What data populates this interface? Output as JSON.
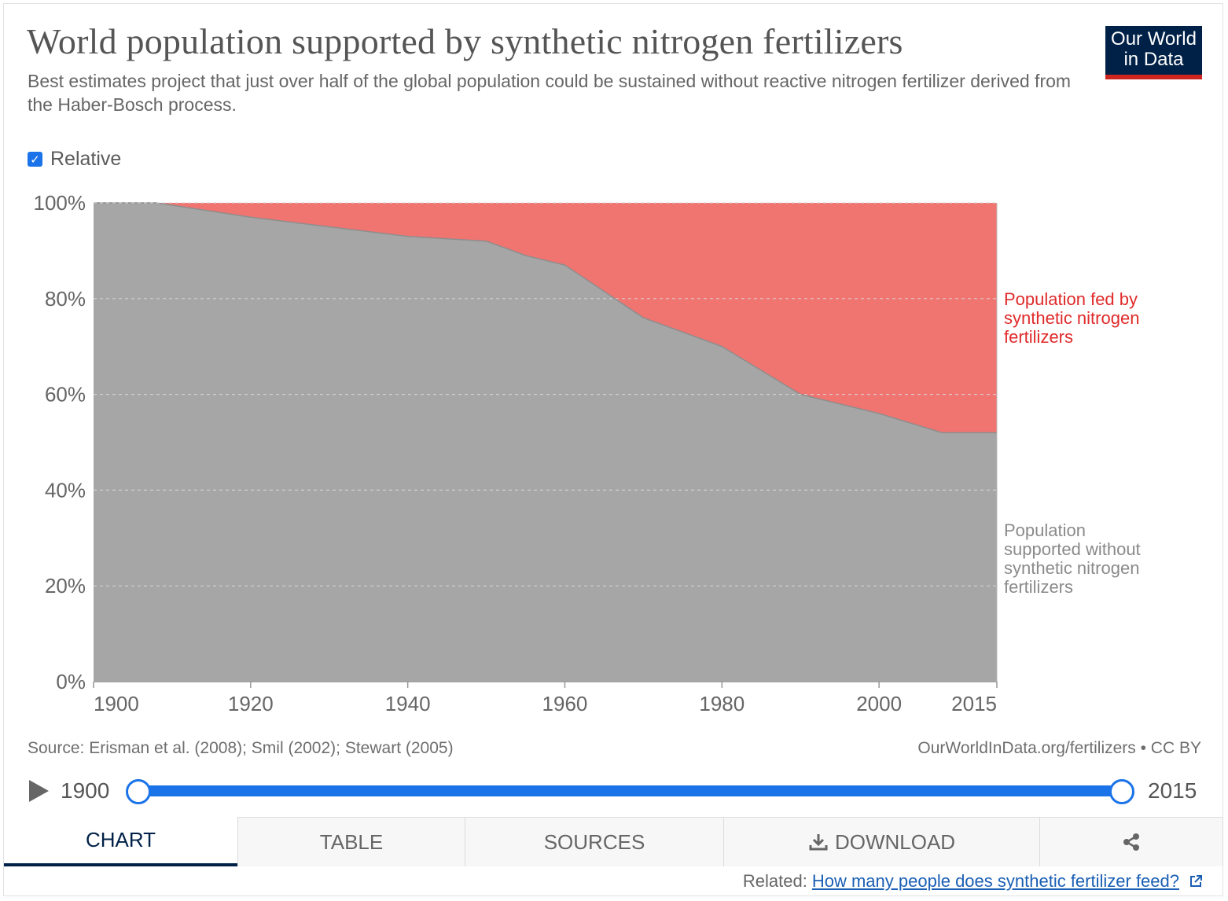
{
  "header": {
    "title": "World population supported by synthetic nitrogen fertilizers",
    "subtitle": "Best estimates project that just over half of the global population could be sustained without reactive nitrogen fertilizer derived from the Haber-Bosch process.",
    "logo_line1": "Our World",
    "logo_line2": "in Data"
  },
  "controls": {
    "relative_label": "Relative",
    "relative_checked": true
  },
  "colors": {
    "fed_by_fertilizer": "#f07470",
    "without_fertilizer": "#a6a6a6",
    "fed_label": "#e02a2a",
    "without_label": "#8a8a8a",
    "accent": "#1a73e8",
    "brand": "#002147"
  },
  "chart_data": {
    "type": "area",
    "stacked": true,
    "relative": true,
    "x": [
      1900,
      1908,
      1920,
      1930,
      1940,
      1950,
      1955,
      1960,
      1970,
      1980,
      1990,
      2000,
      2008,
      2015
    ],
    "series": [
      {
        "name": "Population supported without synthetic nitrogen fertilizers",
        "values": [
          100,
          100,
          97,
          95,
          93,
          92,
          89,
          87,
          76,
          70,
          60,
          56,
          52,
          52
        ]
      },
      {
        "name": "Population fed by synthetic nitrogen fertilizers",
        "values": [
          0,
          0,
          3,
          5,
          7,
          8,
          11,
          13,
          24,
          30,
          40,
          44,
          48,
          48
        ]
      }
    ],
    "xlim": [
      1900,
      2015
    ],
    "ylim": [
      0,
      100
    ],
    "x_ticks": [
      "1900",
      "1920",
      "1940",
      "1960",
      "1980",
      "2000",
      "2015"
    ],
    "y_ticks": [
      "0%",
      "20%",
      "40%",
      "60%",
      "80%",
      "100%"
    ],
    "legend_fed": [
      "Population fed by",
      "synthetic nitrogen",
      "fertilizers"
    ],
    "legend_without": [
      "Population",
      "supported without",
      "synthetic nitrogen",
      "fertilizers"
    ],
    "grid": true
  },
  "footer": {
    "source": "Source: Erisman et al. (2008); Smil (2002); Stewart (2005)",
    "license": "OurWorldInData.org/fertilizers • CC BY"
  },
  "timeline": {
    "start_year": "1900",
    "end_year": "2015"
  },
  "tabs": [
    {
      "label": "CHART",
      "active": true
    },
    {
      "label": "TABLE",
      "active": false
    },
    {
      "label": "SOURCES",
      "active": false
    },
    {
      "label": "DOWNLOAD",
      "active": false
    },
    {
      "label": "",
      "active": false
    }
  ],
  "related": {
    "prefix": "Related:",
    "link_text": "How many people does synthetic fertilizer feed?"
  }
}
